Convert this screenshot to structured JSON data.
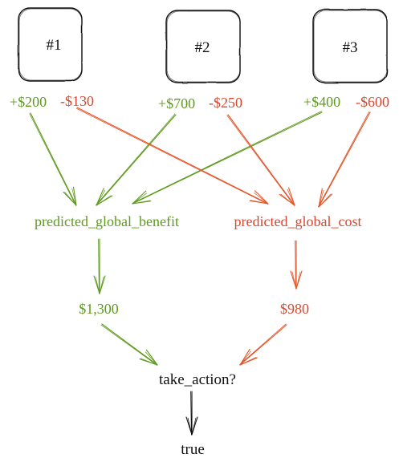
{
  "colors": {
    "benefit": "#5e9a1e",
    "cost": "#d9472e",
    "cost_arrow": "#e3562a",
    "ink": "#111111"
  },
  "nodes": {
    "box1": "#1",
    "box2": "#2",
    "box3": "#3",
    "b1": "+$200",
    "c1": "-$130",
    "b2": "+$700",
    "c2": "-$250",
    "b3": "+$400",
    "c3": "-$600",
    "benefit_label": "predicted_global_benefit",
    "cost_label": "predicted_global_cost",
    "benefit_total": "$1,300",
    "cost_total": "$980",
    "decision": "take_action?",
    "result": "true"
  }
}
